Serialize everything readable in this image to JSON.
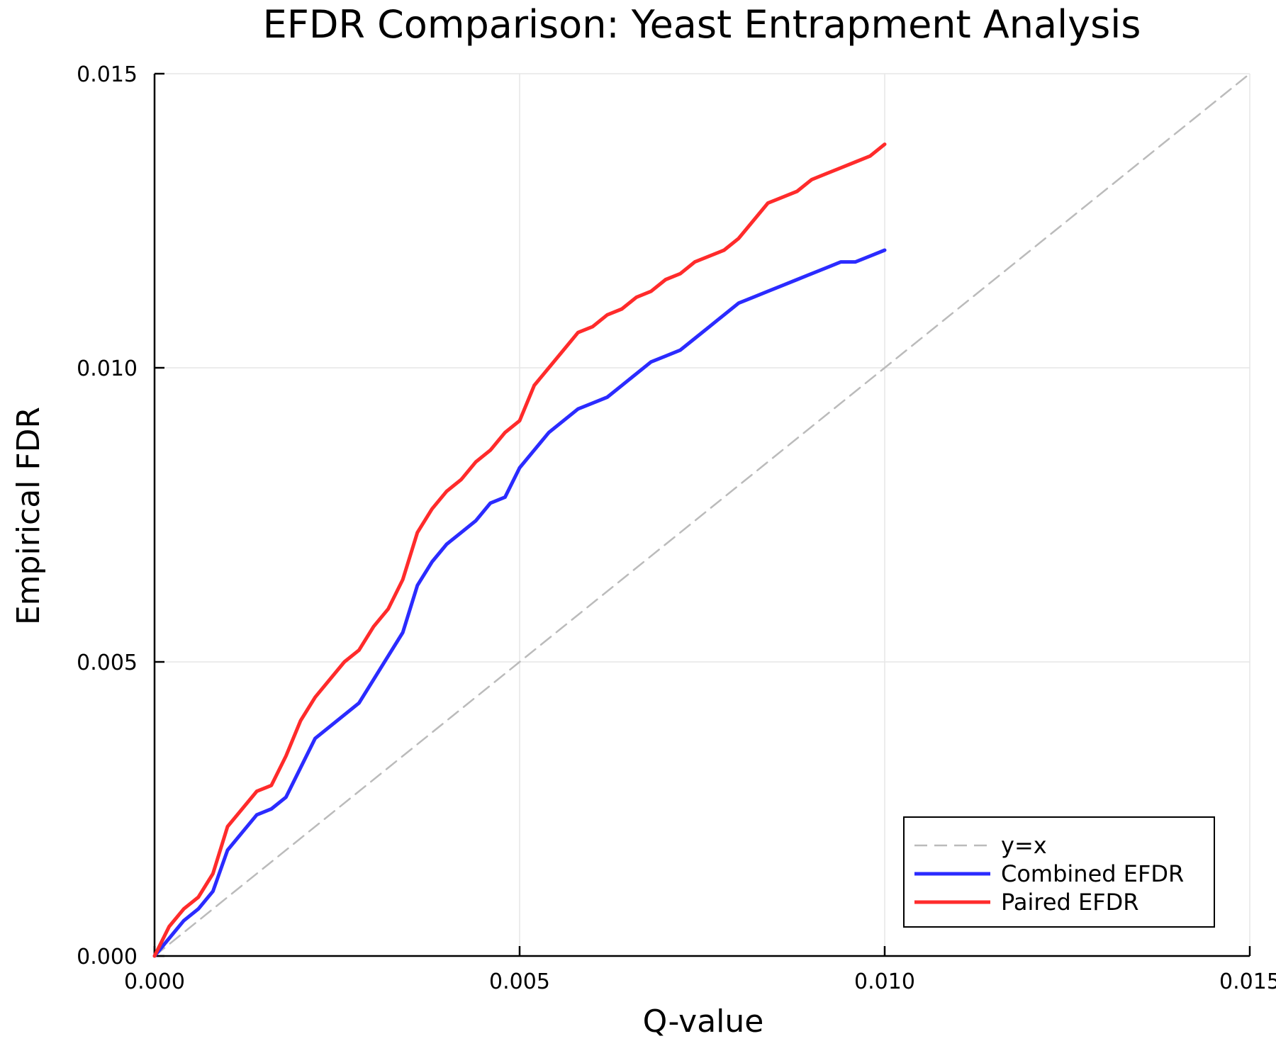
{
  "chart_data": {
    "type": "line",
    "title": "EFDR Comparison: Yeast Entrapment Analysis",
    "xlabel": "Q-value",
    "ylabel": "Empirical FDR",
    "xlim": [
      0,
      0.015
    ],
    "ylim": [
      0,
      0.015
    ],
    "xticks": [
      0,
      0.005,
      0.01,
      0.015
    ],
    "yticks": [
      0,
      0.005,
      0.01,
      0.015
    ],
    "xtick_labels": [
      "0.000",
      "0.005",
      "0.010",
      "0.015"
    ],
    "ytick_labels": [
      "0.000",
      "0.005",
      "0.010",
      "0.015"
    ],
    "grid": true,
    "legend_position": "bottom-right",
    "series": [
      {
        "name": "y=x",
        "color": "#bbbbbb",
        "style": "dashed",
        "x": [
          0,
          0.015
        ],
        "y": [
          0,
          0.015
        ]
      },
      {
        "name": "Combined EFDR",
        "color": "#2b2bff",
        "style": "solid",
        "x": [
          0,
          0.0002,
          0.0004,
          0.0006,
          0.0008,
          0.001,
          0.0012,
          0.0014,
          0.0016,
          0.0018,
          0.002,
          0.0022,
          0.0024,
          0.0026,
          0.0028,
          0.003,
          0.0032,
          0.0034,
          0.0036,
          0.0038,
          0.004,
          0.0042,
          0.0044,
          0.0046,
          0.0048,
          0.005,
          0.0052,
          0.0054,
          0.0056,
          0.0058,
          0.006,
          0.0062,
          0.0064,
          0.0066,
          0.0068,
          0.007,
          0.0072,
          0.0074,
          0.0076,
          0.0078,
          0.008,
          0.0082,
          0.0084,
          0.0086,
          0.0088,
          0.009,
          0.0092,
          0.0094,
          0.0096,
          0.0098,
          0.01
        ],
        "y": [
          0,
          0.0003,
          0.0006,
          0.0008,
          0.0011,
          0.0018,
          0.0021,
          0.0024,
          0.0025,
          0.0027,
          0.0032,
          0.0037,
          0.0039,
          0.0041,
          0.0043,
          0.0047,
          0.0051,
          0.0055,
          0.0063,
          0.0067,
          0.007,
          0.0072,
          0.0074,
          0.0077,
          0.0078,
          0.0083,
          0.0086,
          0.0089,
          0.0091,
          0.0093,
          0.0094,
          0.0095,
          0.0097,
          0.0099,
          0.0101,
          0.0102,
          0.0103,
          0.0105,
          0.0107,
          0.0109,
          0.0111,
          0.0112,
          0.0113,
          0.0114,
          0.0115,
          0.0116,
          0.0117,
          0.0118,
          0.0118,
          0.0119,
          0.012
        ]
      },
      {
        "name": "Paired EFDR",
        "color": "#ff2b2b",
        "style": "solid",
        "x": [
          0,
          0.0002,
          0.0004,
          0.0006,
          0.0008,
          0.001,
          0.0012,
          0.0014,
          0.0016,
          0.0018,
          0.002,
          0.0022,
          0.0024,
          0.0026,
          0.0028,
          0.003,
          0.0032,
          0.0034,
          0.0036,
          0.0038,
          0.004,
          0.0042,
          0.0044,
          0.0046,
          0.0048,
          0.005,
          0.0052,
          0.0054,
          0.0056,
          0.0058,
          0.006,
          0.0062,
          0.0064,
          0.0066,
          0.0068,
          0.007,
          0.0072,
          0.0074,
          0.0076,
          0.0078,
          0.008,
          0.0082,
          0.0084,
          0.0086,
          0.0088,
          0.009,
          0.0092,
          0.0094,
          0.0096,
          0.0098,
          0.01
        ],
        "y": [
          0,
          0.0005,
          0.0008,
          0.001,
          0.0014,
          0.0022,
          0.0025,
          0.0028,
          0.0029,
          0.0034,
          0.004,
          0.0044,
          0.0047,
          0.005,
          0.0052,
          0.0056,
          0.0059,
          0.0064,
          0.0072,
          0.0076,
          0.0079,
          0.0081,
          0.0084,
          0.0086,
          0.0089,
          0.0091,
          0.0097,
          0.01,
          0.0103,
          0.0106,
          0.0107,
          0.0109,
          0.011,
          0.0112,
          0.0113,
          0.0115,
          0.0116,
          0.0118,
          0.0119,
          0.012,
          0.0122,
          0.0125,
          0.0128,
          0.0129,
          0.013,
          0.0132,
          0.0133,
          0.0134,
          0.0135,
          0.0136,
          0.0138
        ]
      }
    ]
  }
}
